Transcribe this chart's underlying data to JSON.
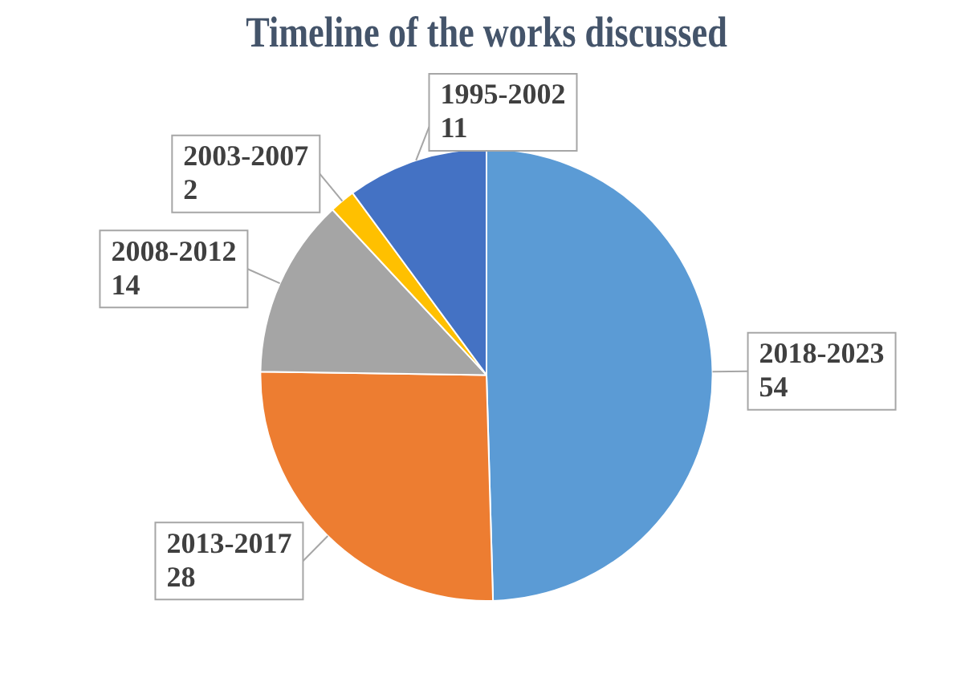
{
  "chart_data": {
    "type": "pie",
    "title": "Timeline of the works discussed",
    "categories": [
      "2018-2023",
      "2013-2017",
      "2008-2012",
      "2003-2007",
      "1995-2002"
    ],
    "values": [
      54,
      28,
      14,
      2,
      11
    ],
    "colors": [
      "#5b9bd5",
      "#ed7d31",
      "#a5a5a5",
      "#ffc000",
      "#4472c4"
    ],
    "data_labels": true,
    "legend": false
  }
}
